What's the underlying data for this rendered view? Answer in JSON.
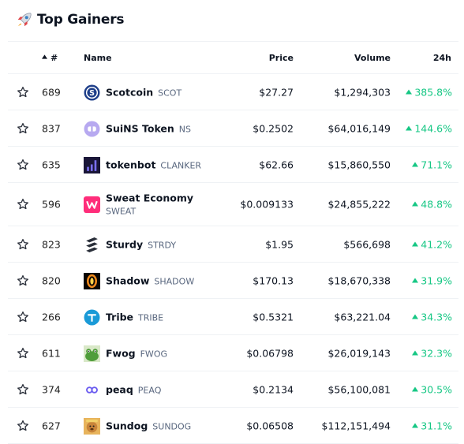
{
  "header": {
    "title": "Top Gainers",
    "icon": "rocket-icon"
  },
  "columns": {
    "rank": "#",
    "name": "Name",
    "price": "Price",
    "volume": "Volume",
    "change": "24h"
  },
  "colors": {
    "positive": "#16c784",
    "text": "#0d1421",
    "muted": "#58667e",
    "divider": "#eff2f5"
  },
  "rows": [
    {
      "rank": "689",
      "name": "Scotcoin",
      "symbol": "SCOT",
      "price": "$27.27",
      "volume": "$1,294,303",
      "change": "385.8%",
      "icon": "scotcoin-icon"
    },
    {
      "rank": "837",
      "name": "SuiNS Token",
      "symbol": "NS",
      "price": "$0.2502",
      "volume": "$64,016,149",
      "change": "144.6%",
      "icon": "suins-icon"
    },
    {
      "rank": "635",
      "name": "tokenbot",
      "symbol": "CLANKER",
      "price": "$62.66",
      "volume": "$15,860,550",
      "change": "71.1%",
      "icon": "tokenbot-icon"
    },
    {
      "rank": "596",
      "name": "Sweat Economy",
      "symbol": "SWEAT",
      "price": "$0.009133",
      "volume": "$24,855,222",
      "change": "48.8%",
      "icon": "sweat-icon"
    },
    {
      "rank": "823",
      "name": "Sturdy",
      "symbol": "STRDY",
      "price": "$1.95",
      "volume": "$566,698",
      "change": "41.2%",
      "icon": "sturdy-icon"
    },
    {
      "rank": "820",
      "name": "Shadow",
      "symbol": "SHADOW",
      "price": "$170.13",
      "volume": "$18,670,338",
      "change": "31.9%",
      "icon": "shadow-icon"
    },
    {
      "rank": "266",
      "name": "Tribe",
      "symbol": "TRIBE",
      "price": "$0.5321",
      "volume": "$63,221.04",
      "change": "34.3%",
      "icon": "tribe-icon"
    },
    {
      "rank": "611",
      "name": "Fwog",
      "symbol": "FWOG",
      "price": "$0.06798",
      "volume": "$26,019,143",
      "change": "32.3%",
      "icon": "fwog-icon"
    },
    {
      "rank": "374",
      "name": "peaq",
      "symbol": "PEAQ",
      "price": "$0.2134",
      "volume": "$56,100,081",
      "change": "30.5%",
      "icon": "peaq-icon"
    },
    {
      "rank": "627",
      "name": "Sundog",
      "symbol": "SUNDOG",
      "price": "$0.06508",
      "volume": "$112,151,494",
      "change": "31.1%",
      "icon": "sundog-icon"
    }
  ]
}
